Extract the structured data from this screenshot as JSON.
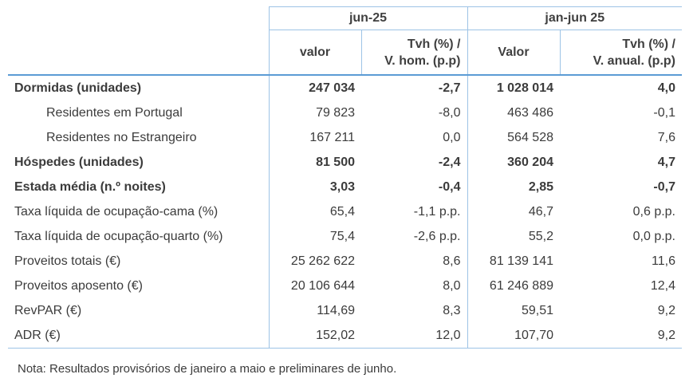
{
  "header": {
    "groups": [
      "jun-25",
      "jan-jun 25"
    ],
    "columns": [
      [
        "valor"
      ],
      [
        "Tvh (%) /",
        "V. hom. (p.p)"
      ],
      [
        "Valor"
      ],
      [
        "Tvh (%) /",
        "V. anual. (p.p)"
      ]
    ]
  },
  "table": {
    "rows": [
      {
        "label": "Dormidas (unidades)",
        "bold": true,
        "indent": false,
        "values": [
          "247 034",
          "-2,7",
          "1 028 014",
          "4,0"
        ]
      },
      {
        "label": "Residentes em Portugal",
        "bold": false,
        "indent": true,
        "values": [
          "79 823",
          "-8,0",
          "463 486",
          "-0,1"
        ]
      },
      {
        "label": "Residentes no Estrangeiro",
        "bold": false,
        "indent": true,
        "values": [
          "167 211",
          "0,0",
          "564 528",
          "7,6"
        ]
      },
      {
        "label": "Hóspedes (unidades)",
        "bold": true,
        "indent": false,
        "values": [
          "81 500",
          "-2,4",
          "360 204",
          "4,7"
        ]
      },
      {
        "label": "Estada média (n.º noites)",
        "bold": true,
        "indent": false,
        "values": [
          "3,03",
          "-0,4",
          "2,85",
          "-0,7"
        ]
      },
      {
        "label": "Taxa líquida de ocupação-cama (%)",
        "bold": false,
        "indent": false,
        "values": [
          "65,4",
          "-1,1 p.p.",
          "46,7",
          "0,6 p.p."
        ]
      },
      {
        "label": "Taxa líquida de ocupação-quarto (%)",
        "bold": false,
        "indent": false,
        "values": [
          "75,4",
          "-2,6 p.p.",
          "55,2",
          "0,0 p.p."
        ]
      },
      {
        "label": "Proveitos totais (€)",
        "bold": false,
        "indent": false,
        "values": [
          "25 262 622",
          "8,6",
          "81 139 141",
          "11,6"
        ]
      },
      {
        "label": "Proveitos aposento (€)",
        "bold": false,
        "indent": false,
        "values": [
          "20 106 644",
          "8,0",
          "61 246 889",
          "12,4"
        ]
      },
      {
        "label": "RevPAR (€)",
        "bold": false,
        "indent": false,
        "values": [
          "114,69",
          "8,3",
          "59,51",
          "9,2"
        ]
      },
      {
        "label": "ADR (€)",
        "bold": false,
        "indent": false,
        "values": [
          "152,02",
          "12,0",
          "107,70",
          "9,2"
        ]
      }
    ]
  },
  "note": "Nota: Resultados provisórios de janeiro a maio e preliminares de junho."
}
